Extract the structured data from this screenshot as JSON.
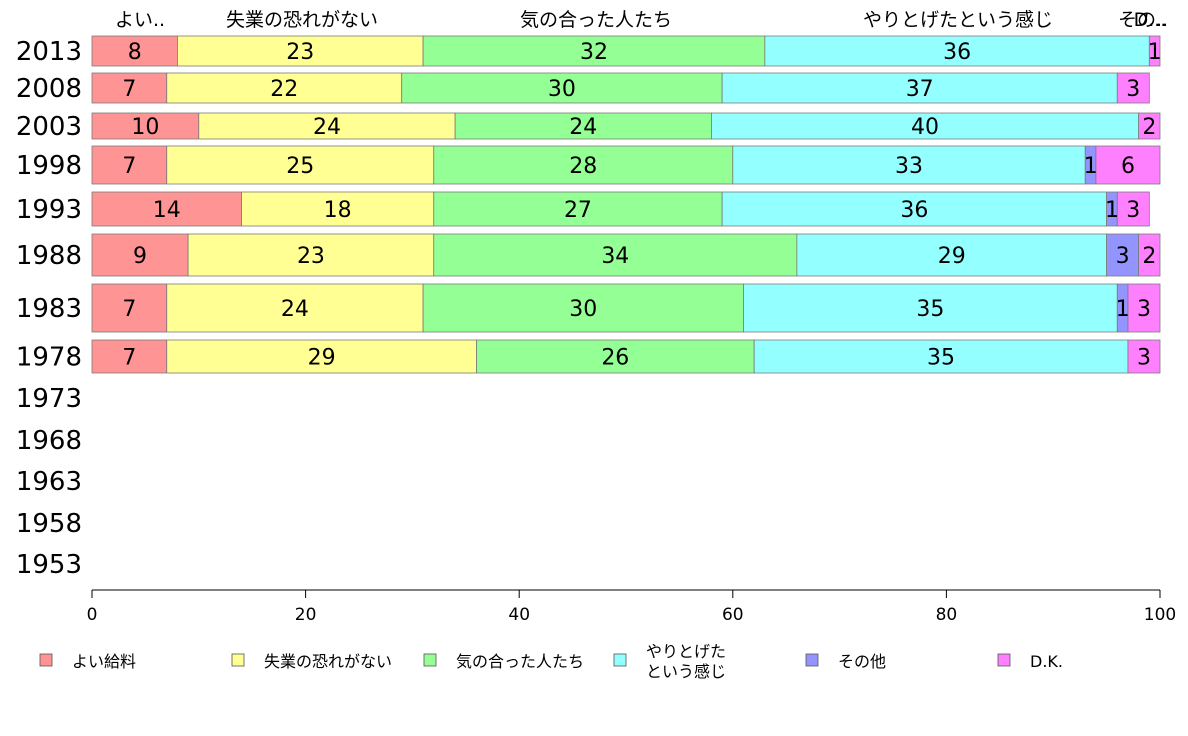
{
  "chart_data": {
    "type": "bar",
    "orientation": "horizontal",
    "stacked": true,
    "xlim": [
      0,
      100
    ],
    "x_ticks": [
      "0",
      "20",
      "40",
      "60",
      "80",
      "100"
    ],
    "categories": [
      "2013",
      "2008",
      "2003",
      "1998",
      "1993",
      "1988",
      "1983",
      "1978",
      "1973",
      "1968",
      "1963",
      "1958",
      "1953"
    ],
    "top_labels": [
      "よい..",
      "失業の恐れがない",
      "気の合った人たち",
      "やりとげたという感じ",
      "その..",
      "D..."
    ],
    "series": [
      {
        "name": "よい給料",
        "color": "#ff9494",
        "values": [
          8,
          7,
          10,
          7,
          14,
          9,
          7,
          7,
          null,
          null,
          null,
          null,
          null
        ]
      },
      {
        "name": "失業の恐れがない",
        "color": "#ffff94",
        "values": [
          23,
          22,
          24,
          25,
          18,
          23,
          24,
          29,
          null,
          null,
          null,
          null,
          null
        ]
      },
      {
        "name": "気の合った人たち",
        "color": "#94ff94",
        "values": [
          32,
          30,
          24,
          28,
          27,
          34,
          30,
          26,
          null,
          null,
          null,
          null,
          null
        ]
      },
      {
        "name": "やりとげたという感じ",
        "color": "#94ffff",
        "values": [
          36,
          37,
          40,
          33,
          36,
          29,
          35,
          35,
          null,
          null,
          null,
          null,
          null
        ]
      },
      {
        "name": "その他",
        "color": "#9494ff",
        "values": [
          0,
          0,
          0,
          1,
          1,
          3,
          1,
          0,
          null,
          null,
          null,
          null,
          null
        ]
      },
      {
        "name": "D.K.",
        "color": "#ff80ff",
        "values": [
          1,
          3,
          2,
          6,
          3,
          2,
          3,
          3,
          null,
          null,
          null,
          null,
          null
        ]
      }
    ],
    "data_labels": [
      [
        "8",
        "23",
        "32",
        "36",
        "",
        "1"
      ],
      [
        "7",
        "22",
        "30",
        "37",
        "",
        "3"
      ],
      [
        "10",
        "24",
        "24",
        "40",
        "",
        "2"
      ],
      [
        "7",
        "25",
        "28",
        "33",
        "1",
        "6"
      ],
      [
        "14",
        "18",
        "27",
        "36",
        "1",
        "3"
      ],
      [
        "9",
        "23",
        "34",
        "29",
        "3",
        "2"
      ],
      [
        "7",
        "24",
        "30",
        "35",
        "1",
        "3"
      ],
      [
        "7",
        "29",
        "26",
        "35",
        "",
        "3"
      ]
    ],
    "legend": {
      "position": "bottom",
      "labels": [
        "よい給料",
        "失業の恐れがない",
        "気の合った人たち",
        [
          "やりとげた",
          "という感じ"
        ],
        "その他",
        "D.K."
      ]
    }
  }
}
